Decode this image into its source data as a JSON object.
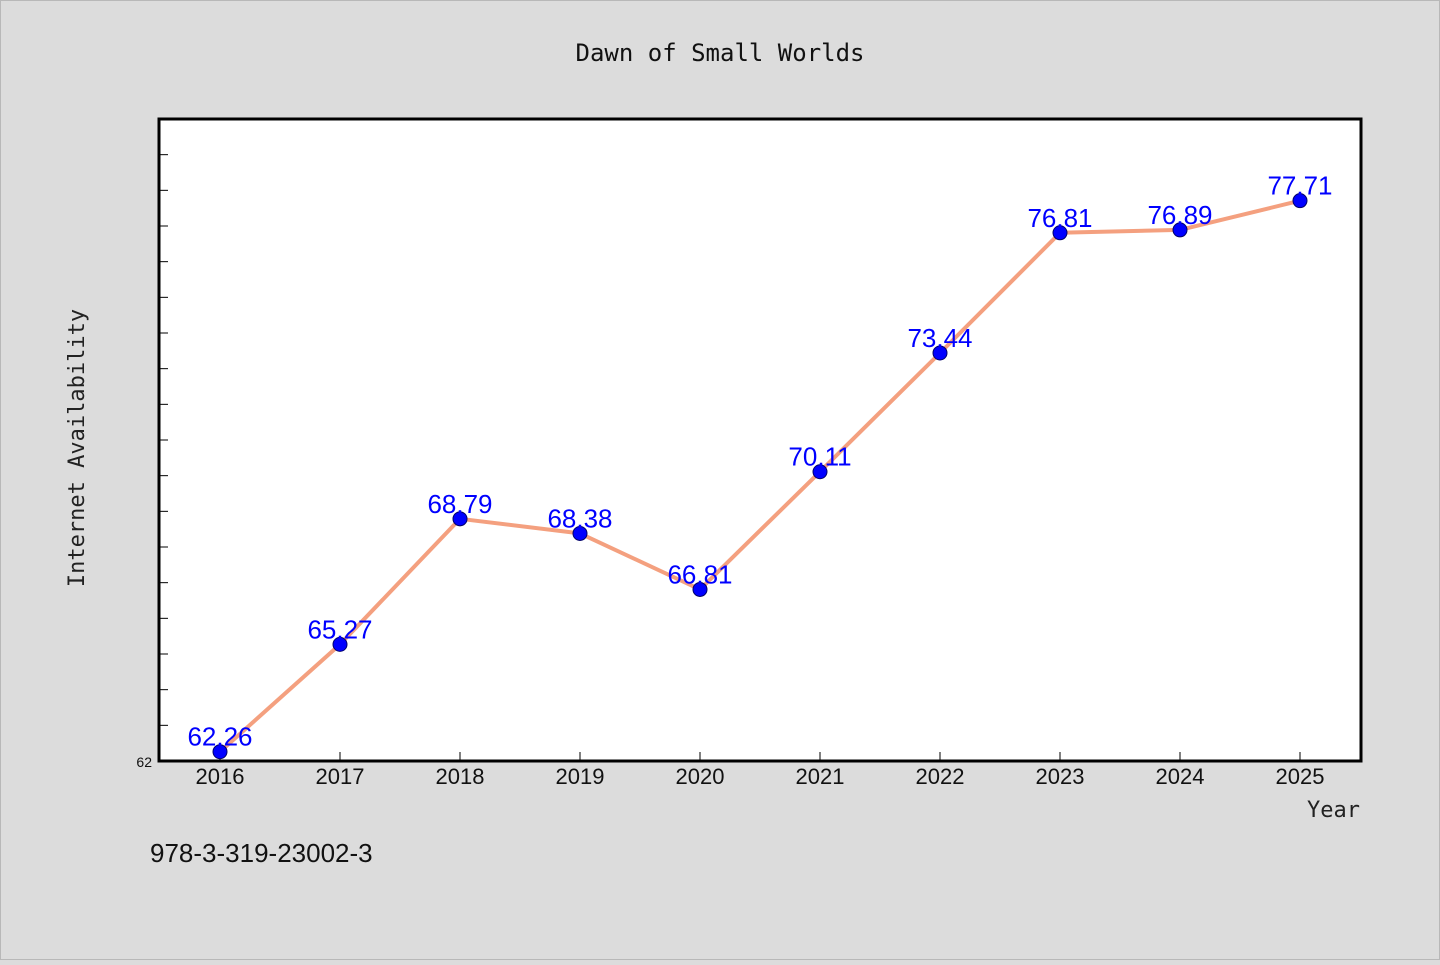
{
  "footer": {
    "identifier": "978-3-319-23002-3"
  },
  "colors": {
    "background": "#dcdcdc",
    "plot_background": "#ffffff",
    "line": "#f4a07f",
    "marker": "#0000ff",
    "data_label": "#0000ff"
  },
  "chart_data": {
    "type": "line",
    "title": "Dawn of Small Worlds",
    "xlabel": "Year",
    "ylabel": "Internet Availability",
    "categories": [
      "2016",
      "2017",
      "2018",
      "2019",
      "2020",
      "2021",
      "2022",
      "2023",
      "2024",
      "2025"
    ],
    "series": [
      {
        "values": [
          62.26,
          65.27,
          68.79,
          68.38,
          66.81,
          70.11,
          73.44,
          76.81,
          76.89,
          77.71
        ]
      }
    ],
    "data_labels": [
      "62.26",
      "65.27",
      "68.79",
      "68.38",
      "66.81",
      "70.11",
      "73.44",
      "76.81",
      "76.89",
      "77.71"
    ],
    "y_tick_labels": [
      "62"
    ],
    "ylim": [
      62,
      80
    ],
    "grid": false,
    "legend": "none"
  }
}
